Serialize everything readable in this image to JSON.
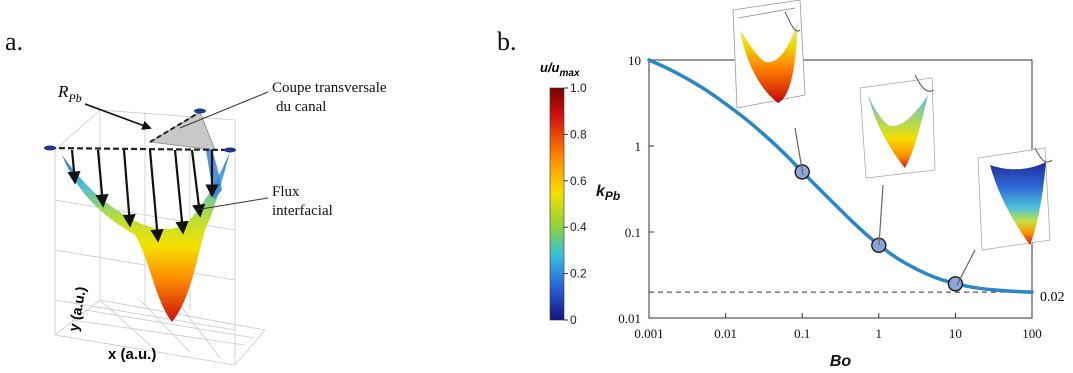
{
  "panel_a": {
    "label": "a.",
    "r_label_main": "R",
    "r_label_sub": "Pb",
    "annotation_cross_section": [
      "Coupe transversale",
      "du canal"
    ],
    "annotation_flux": [
      "Flux",
      "interfacial"
    ],
    "x_axis_label": "x (a.u.)",
    "y_axis_label": "y (a.u.)"
  },
  "panel_b": {
    "label": "b.",
    "colorbar": {
      "title_main": "u/u",
      "title_sub": "max",
      "ticks": [
        "1.0",
        "0.8",
        "0.6",
        "0.4",
        "0.2",
        "0"
      ]
    },
    "asymptote_label": "0.02"
  },
  "chart_data": {
    "type": "line",
    "xlabel": "Bo",
    "ylabel_main": "k",
    "ylabel_sub": "Pb",
    "x_scale": "log",
    "y_scale": "log",
    "xlim": [
      0.001,
      100
    ],
    "ylim": [
      0.01,
      10
    ],
    "x_ticks": [
      "0.001",
      "0.01",
      "0.1",
      "1",
      "10",
      "100"
    ],
    "y_ticks": [
      "10",
      "1",
      "0.1",
      "0.01"
    ],
    "asymptote": 0.02,
    "series": [
      {
        "color": "#2a86c8",
        "x": [
          0.001,
          0.002,
          0.005,
          0.01,
          0.02,
          0.05,
          0.1,
          0.2,
          0.5,
          1,
          2,
          5,
          10,
          20,
          50,
          100
        ],
        "y": [
          10,
          7.6,
          4.8,
          3.1,
          1.95,
          0.95,
          0.5,
          0.27,
          0.12,
          0.07,
          0.045,
          0.03,
          0.025,
          0.022,
          0.0205,
          0.02
        ]
      }
    ],
    "markers": [
      {
        "x": 0.1,
        "y": 0.5
      },
      {
        "x": 1,
        "y": 0.07
      },
      {
        "x": 10,
        "y": 0.025
      }
    ]
  }
}
